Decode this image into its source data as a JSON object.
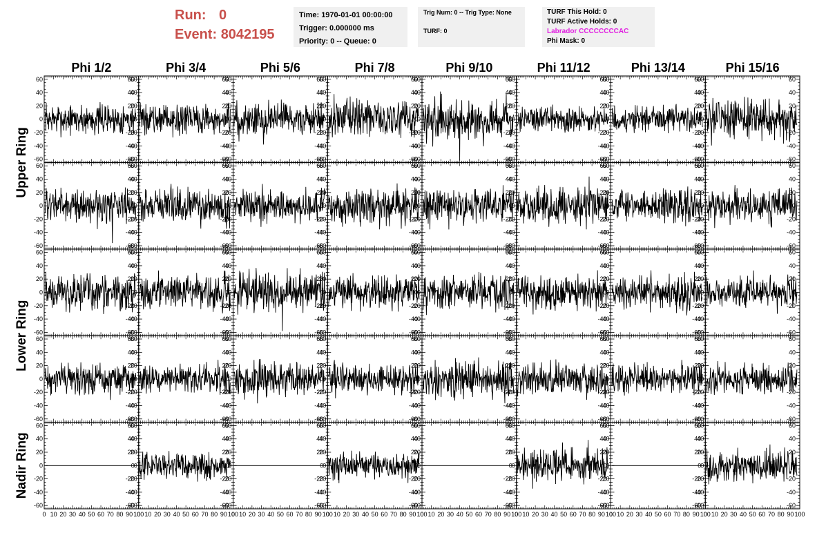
{
  "header": {
    "run_label": "Run:",
    "run_value": "0",
    "event_label": "Event:",
    "event_value": "8042195"
  },
  "info_time": {
    "time": "Time: 1970-01-01 00:00:00",
    "trigger": "Trigger: 0.000000 ms",
    "priority": "Priority: 0 -- Queue: 0"
  },
  "info_trig": {
    "trig": "Trig Num: 0 -- Trig Type: None",
    "turf": "TURF: 0"
  },
  "info_turf": {
    "this_hold": "TURF This Hold: 0",
    "active_holds": "TURF Active Holds: 0",
    "labrador": "Labrador CCCCCCCCAC",
    "phi_mask": "Phi Mask: 0"
  },
  "colors": {
    "run_text": "#c8504b",
    "labrador_text": "#e020e0",
    "info_bg": "#f0f0f0",
    "trace": "#000000"
  },
  "chart_data": {
    "type": "line",
    "columns": [
      "Phi 1/2",
      "Phi 3/4",
      "Phi 5/6",
      "Phi 7/8",
      "Phi 9/10",
      "Phi 11/12",
      "Phi 13/14",
      "Phi 15/16"
    ],
    "rows": [
      "Upper Ring",
      "Upper Ring",
      "Lower Ring",
      "Lower Ring",
      "Nadir Ring"
    ],
    "row_labels": [
      {
        "label": "Upper Ring",
        "spans_rows": [
          0,
          1
        ]
      },
      {
        "label": "Lower Ring",
        "spans_rows": [
          2,
          3
        ]
      },
      {
        "label": "Nadir Ring",
        "spans_rows": [
          4
        ]
      }
    ],
    "ylim": [
      -65,
      65
    ],
    "xlim": [
      0,
      100
    ],
    "yticks": [
      -60,
      -40,
      -20,
      0,
      20,
      40,
      60
    ],
    "xticks": [
      0,
      10,
      20,
      30,
      40,
      50,
      60,
      70,
      80,
      90,
      100
    ],
    "samples_per_trace": 260,
    "trace_amplitude": [
      [
        16,
        15,
        18,
        19,
        21,
        14,
        14,
        20
      ],
      [
        17,
        18,
        17,
        19,
        18,
        19,
        17,
        17
      ],
      [
        19,
        17,
        20,
        17,
        19,
        18,
        18,
        16
      ],
      [
        16,
        15,
        18,
        16,
        20,
        17,
        15,
        16
      ],
      [
        0,
        14,
        0,
        15,
        0,
        18,
        0,
        16
      ]
    ],
    "spikes": [
      {
        "row": 0,
        "col": 4,
        "x": 40,
        "y": -62
      },
      {
        "row": 0,
        "col": 2,
        "x": 32,
        "y": -38
      },
      {
        "row": 1,
        "col": 0,
        "x": 72,
        "y": -56
      },
      {
        "row": 1,
        "col": 5,
        "x": 77,
        "y": 44
      },
      {
        "row": 2,
        "col": 2,
        "x": 52,
        "y": -58
      }
    ]
  }
}
